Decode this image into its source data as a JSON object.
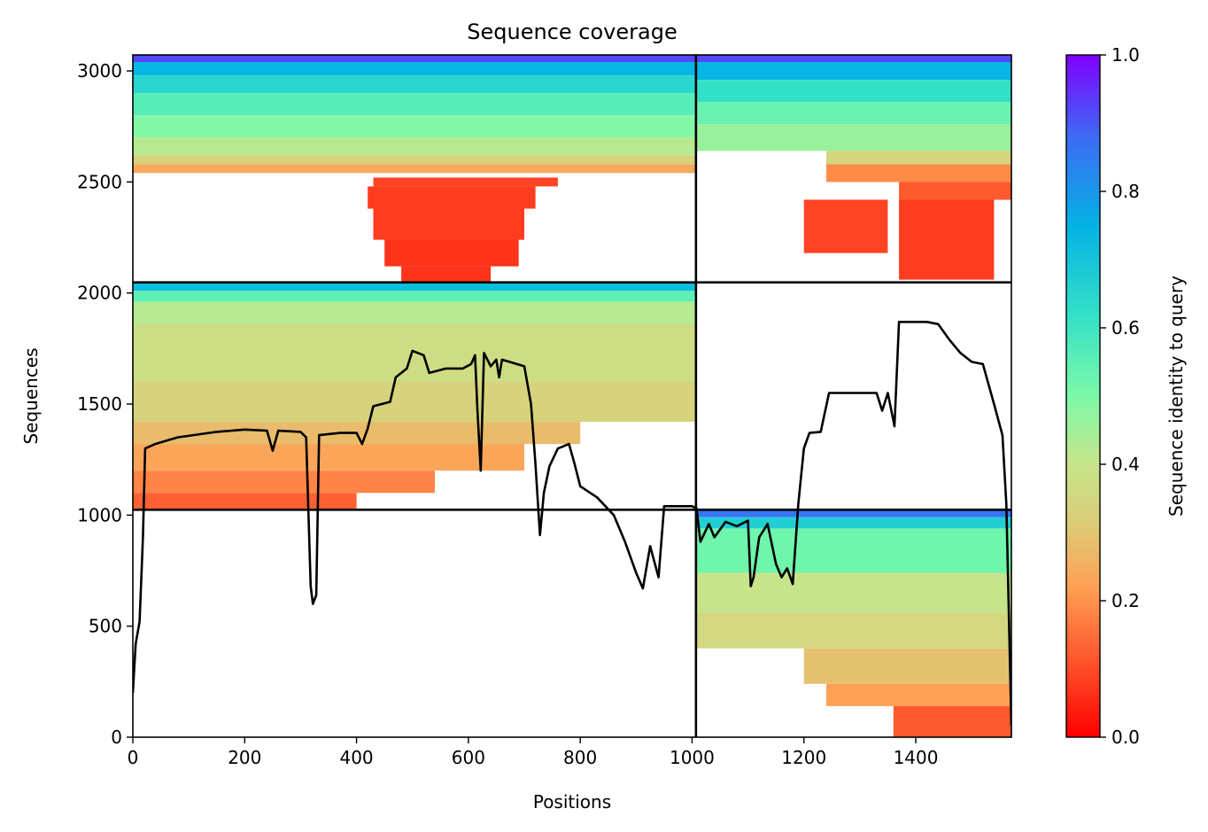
{
  "chart_data": {
    "type": "heatmap",
    "title": "Sequence coverage",
    "xlabel": "Positions",
    "ylabel": "Sequences",
    "xlim": [
      0,
      1571
    ],
    "ylim": [
      0,
      3072
    ],
    "x_ticks": [
      0,
      200,
      400,
      600,
      800,
      1000,
      1200,
      1400
    ],
    "y_ticks": [
      0,
      500,
      1000,
      1500,
      2000,
      2500,
      3000
    ],
    "grid": false,
    "colormap": "rainbow_r",
    "colorbar": {
      "label": "Sequence identity to query",
      "range": [
        0,
        1
      ],
      "ticks": [
        0.0,
        0.2,
        0.4,
        0.6,
        0.8,
        1.0
      ],
      "tick_labels": [
        "0.0",
        "0.2",
        "0.4",
        "0.6",
        "0.8",
        "1.0"
      ]
    },
    "chain_boundaries_x": [
      1007
    ],
    "chain_boundaries_y": [
      1024,
      2048
    ],
    "blocks": [
      {
        "x0": 0,
        "x1": 1007,
        "y0": 2048,
        "y1": 3072,
        "rows": [
          {
            "y0": 3040,
            "y1": 3072,
            "x0": 0,
            "x1": 1007,
            "id": 0.92
          },
          {
            "y0": 2980,
            "y1": 3040,
            "x0": 0,
            "x1": 1007,
            "id": 0.74
          },
          {
            "y0": 2900,
            "y1": 2980,
            "x0": 0,
            "x1": 1007,
            "id": 0.65
          },
          {
            "y0": 2800,
            "y1": 2900,
            "x0": 0,
            "x1": 1007,
            "id": 0.56
          },
          {
            "y0": 2700,
            "y1": 2800,
            "x0": 0,
            "x1": 1007,
            "id": 0.49
          },
          {
            "y0": 2620,
            "y1": 2700,
            "x0": 0,
            "x1": 1007,
            "id": 0.42
          },
          {
            "y0": 2580,
            "y1": 2620,
            "x0": 0,
            "x1": 1007,
            "id": 0.33
          },
          {
            "y0": 2540,
            "y1": 2580,
            "x0": 0,
            "x1": 1007,
            "id": 0.24
          },
          {
            "y0": 2480,
            "y1": 2520,
            "x0": 430,
            "x1": 760,
            "id": 0.09
          },
          {
            "y0": 2380,
            "y1": 2480,
            "x0": 420,
            "x1": 720,
            "id": 0.08
          },
          {
            "y0": 2240,
            "y1": 2380,
            "x0": 430,
            "x1": 700,
            "id": 0.08
          },
          {
            "y0": 2120,
            "y1": 2240,
            "x0": 450,
            "x1": 690,
            "id": 0.07
          },
          {
            "y0": 2048,
            "y1": 2120,
            "x0": 480,
            "x1": 640,
            "id": 0.07
          }
        ]
      },
      {
        "x0": 1007,
        "x1": 1571,
        "y0": 2048,
        "y1": 3072,
        "rows": [
          {
            "y0": 3040,
            "y1": 3072,
            "x0": 1007,
            "x1": 1571,
            "id": 0.92
          },
          {
            "y0": 2960,
            "y1": 3040,
            "x0": 1007,
            "x1": 1571,
            "id": 0.74
          },
          {
            "y0": 2860,
            "y1": 2960,
            "x0": 1007,
            "x1": 1571,
            "id": 0.62
          },
          {
            "y0": 2760,
            "y1": 2860,
            "x0": 1007,
            "x1": 1571,
            "id": 0.53
          },
          {
            "y0": 2640,
            "y1": 2760,
            "x0": 1007,
            "x1": 1571,
            "id": 0.46
          },
          {
            "y0": 2580,
            "y1": 2640,
            "x0": 1240,
            "x1": 1571,
            "id": 0.34
          },
          {
            "y0": 2500,
            "y1": 2580,
            "x0": 1240,
            "x1": 1571,
            "id": 0.19
          },
          {
            "y0": 2420,
            "y1": 2500,
            "x0": 1370,
            "x1": 1571,
            "id": 0.12
          },
          {
            "y0": 2180,
            "y1": 2420,
            "x0": 1200,
            "x1": 1350,
            "id": 0.09
          },
          {
            "y0": 2060,
            "y1": 2420,
            "x0": 1370,
            "x1": 1540,
            "id": 0.08
          }
        ]
      },
      {
        "x0": 0,
        "x1": 1007,
        "y0": 1024,
        "y1": 2048,
        "rows": [
          {
            "y0": 2010,
            "y1": 2048,
            "x0": 0,
            "x1": 1007,
            "id": 0.72
          },
          {
            "y0": 1960,
            "y1": 2010,
            "x0": 0,
            "x1": 1007,
            "id": 0.55
          },
          {
            "y0": 1860,
            "y1": 1960,
            "x0": 0,
            "x1": 1007,
            "id": 0.42
          },
          {
            "y0": 1600,
            "y1": 1860,
            "x0": 0,
            "x1": 1007,
            "id": 0.37
          },
          {
            "y0": 1420,
            "y1": 1600,
            "x0": 0,
            "x1": 1007,
            "id": 0.33
          },
          {
            "y0": 1320,
            "y1": 1420,
            "x0": 0,
            "x1": 800,
            "id": 0.28
          },
          {
            "y0": 1200,
            "y1": 1320,
            "x0": 0,
            "x1": 700,
            "id": 0.23
          },
          {
            "y0": 1100,
            "y1": 1200,
            "x0": 0,
            "x1": 540,
            "id": 0.18
          },
          {
            "y0": 1024,
            "y1": 1100,
            "x0": 0,
            "x1": 400,
            "id": 0.13
          }
        ]
      },
      {
        "x0": 1007,
        "x1": 1571,
        "y0": 0,
        "y1": 1024,
        "rows": [
          {
            "y0": 990,
            "y1": 1024,
            "x0": 1007,
            "x1": 1571,
            "id": 0.86
          },
          {
            "y0": 940,
            "y1": 990,
            "x0": 1007,
            "x1": 1571,
            "id": 0.67
          },
          {
            "y0": 740,
            "y1": 940,
            "x0": 1007,
            "x1": 1571,
            "id": 0.52
          },
          {
            "y0": 560,
            "y1": 740,
            "x0": 1007,
            "x1": 1571,
            "id": 0.4
          },
          {
            "y0": 400,
            "y1": 560,
            "x0": 1007,
            "x1": 1571,
            "id": 0.35
          },
          {
            "y0": 240,
            "y1": 400,
            "x0": 1200,
            "x1": 1571,
            "id": 0.29
          },
          {
            "y0": 140,
            "y1": 240,
            "x0": 1240,
            "x1": 1571,
            "id": 0.22
          },
          {
            "y0": 0,
            "y1": 140,
            "x0": 1360,
            "x1": 1571,
            "id": 0.12
          }
        ]
      }
    ],
    "coverage_line": {
      "color": "#000000",
      "points": [
        [
          0,
          200
        ],
        [
          5,
          420
        ],
        [
          12,
          520
        ],
        [
          18,
          900
        ],
        [
          22,
          1300
        ],
        [
          40,
          1320
        ],
        [
          80,
          1350
        ],
        [
          150,
          1375
        ],
        [
          200,
          1385
        ],
        [
          240,
          1380
        ],
        [
          250,
          1290
        ],
        [
          260,
          1380
        ],
        [
          300,
          1375
        ],
        [
          310,
          1350
        ],
        [
          318,
          680
        ],
        [
          322,
          600
        ],
        [
          328,
          640
        ],
        [
          333,
          1360
        ],
        [
          370,
          1370
        ],
        [
          400,
          1370
        ],
        [
          410,
          1320
        ],
        [
          420,
          1390
        ],
        [
          430,
          1490
        ],
        [
          460,
          1510
        ],
        [
          470,
          1620
        ],
        [
          490,
          1660
        ],
        [
          500,
          1740
        ],
        [
          520,
          1720
        ],
        [
          530,
          1640
        ],
        [
          560,
          1660
        ],
        [
          590,
          1660
        ],
        [
          605,
          1680
        ],
        [
          612,
          1720
        ],
        [
          616,
          1480
        ],
        [
          622,
          1200
        ],
        [
          628,
          1730
        ],
        [
          640,
          1670
        ],
        [
          650,
          1700
        ],
        [
          655,
          1620
        ],
        [
          660,
          1700
        ],
        [
          700,
          1670
        ],
        [
          712,
          1500
        ],
        [
          720,
          1230
        ],
        [
          728,
          910
        ],
        [
          735,
          1100
        ],
        [
          745,
          1220
        ],
        [
          760,
          1300
        ],
        [
          780,
          1320
        ],
        [
          790,
          1230
        ],
        [
          800,
          1130
        ],
        [
          830,
          1080
        ],
        [
          860,
          1000
        ],
        [
          880,
          880
        ],
        [
          900,
          740
        ],
        [
          912,
          670
        ],
        [
          925,
          860
        ],
        [
          940,
          720
        ],
        [
          950,
          1040
        ],
        [
          1000,
          1040
        ],
        [
          1008,
          1030
        ],
        [
          1015,
          880
        ],
        [
          1030,
          960
        ],
        [
          1040,
          900
        ],
        [
          1060,
          970
        ],
        [
          1080,
          950
        ],
        [
          1100,
          975
        ],
        [
          1105,
          680
        ],
        [
          1110,
          720
        ],
        [
          1120,
          900
        ],
        [
          1135,
          960
        ],
        [
          1150,
          780
        ],
        [
          1160,
          720
        ],
        [
          1170,
          760
        ],
        [
          1180,
          690
        ],
        [
          1190,
          1050
        ],
        [
          1200,
          1300
        ],
        [
          1210,
          1370
        ],
        [
          1230,
          1375
        ],
        [
          1245,
          1550
        ],
        [
          1300,
          1550
        ],
        [
          1330,
          1550
        ],
        [
          1340,
          1470
        ],
        [
          1350,
          1550
        ],
        [
          1362,
          1400
        ],
        [
          1370,
          1870
        ],
        [
          1400,
          1870
        ],
        [
          1420,
          1870
        ],
        [
          1440,
          1860
        ],
        [
          1460,
          1790
        ],
        [
          1480,
          1730
        ],
        [
          1500,
          1690
        ],
        [
          1520,
          1680
        ],
        [
          1540,
          1500
        ],
        [
          1555,
          1360
        ],
        [
          1562,
          1050
        ],
        [
          1571,
          50
        ]
      ]
    }
  }
}
